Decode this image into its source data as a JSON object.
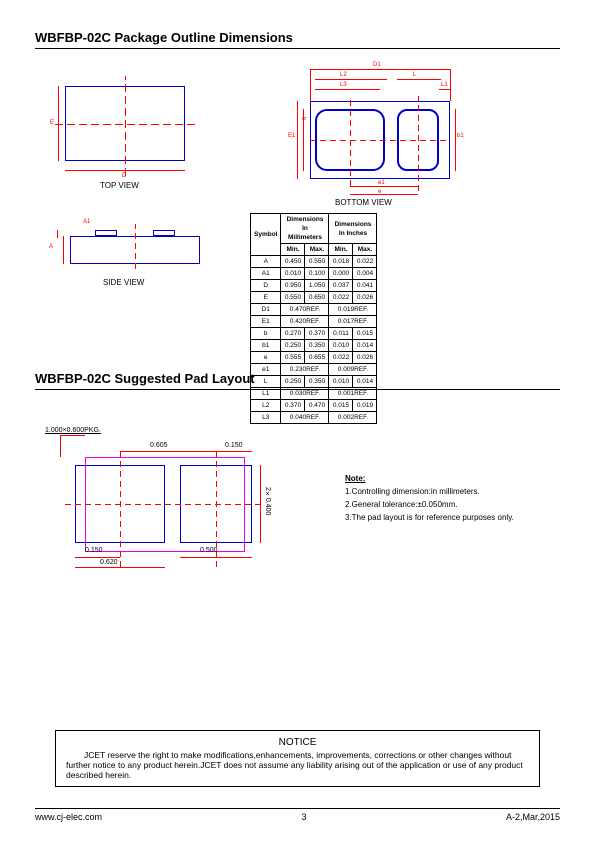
{
  "header1_part": "WBFBP-02C",
  "header1_title": "Package Outline Dimensions",
  "view_labels": {
    "top": "TOP VIEW",
    "bottom": "BOTTOM VIEW",
    "side": "SIDE VIEW"
  },
  "top_view_dims": {
    "D": "D",
    "E": "E"
  },
  "bottom_view_dims": {
    "D1": "D1",
    "L2": "L2",
    "L3": "L3",
    "L": "L",
    "L1": "L1",
    "E1": "E1",
    "b": "b",
    "b1": "b1",
    "e1": "e1",
    "e": "e"
  },
  "side_view_dims": {
    "A": "A",
    "A1": "A1"
  },
  "table": {
    "h_symbol": "Symbol",
    "h_dim_mm": "Dimensions In Millimeters",
    "h_dim_in": "Dimensions In Inches",
    "h_min": "Min.",
    "h_max": "Max.",
    "rows": [
      {
        "sym": "A",
        "mm_min": "0.450",
        "mm_max": "0.550",
        "in_min": "0.018",
        "in_max": "0.022"
      },
      {
        "sym": "A1",
        "mm_min": "0.010",
        "mm_max": "0.100",
        "in_min": "0.000",
        "in_max": "0.004"
      },
      {
        "sym": "D",
        "mm_min": "0.950",
        "mm_max": "1.050",
        "in_min": "0.037",
        "in_max": "0.041"
      },
      {
        "sym": "E",
        "mm_min": "0.550",
        "mm_max": "0.650",
        "in_min": "0.022",
        "in_max": "0.026"
      },
      {
        "sym": "D1",
        "mm_span": "0.470REF.",
        "in_span": "0.019REF."
      },
      {
        "sym": "E1",
        "mm_span": "0.420REF.",
        "in_span": "0.017REF."
      },
      {
        "sym": "b",
        "mm_min": "0.270",
        "mm_max": "0.370",
        "in_min": "0.011",
        "in_max": "0.015"
      },
      {
        "sym": "b1",
        "mm_min": "0.250",
        "mm_max": "0.350",
        "in_min": "0.010",
        "in_max": "0.014"
      },
      {
        "sym": "e",
        "mm_min": "0.555",
        "mm_max": "0.655",
        "in_min": "0.022",
        "in_max": "0.026"
      },
      {
        "sym": "e1",
        "mm_span": "0.230REF.",
        "in_span": "0.009REF."
      },
      {
        "sym": "L",
        "mm_min": "0.250",
        "mm_max": "0.350",
        "in_min": "0.010",
        "in_max": "0.014"
      },
      {
        "sym": "L1",
        "mm_span": "0.030REF.",
        "in_span": "0.001REF."
      },
      {
        "sym": "L2",
        "mm_min": "0.370",
        "mm_max": "0.470",
        "in_min": "0.015",
        "in_max": "0.019"
      },
      {
        "sym": "L3",
        "mm_span": "0.040REF.",
        "in_span": "0.002REF."
      }
    ]
  },
  "header2_part": "WBFBP-02C",
  "header2_title": "Suggested Pad Layout",
  "pad_layout": {
    "pkg_label": "1.000×0.600PKG.",
    "d_0605": "0.605",
    "d_0150": "0.150",
    "d_0150b": "0.150",
    "d_0500": "0.500",
    "d_0620": "0.620",
    "d_2x0400": "2×0.400"
  },
  "notes": {
    "title": "Note:",
    "l1": "1.Controlling dimension:in millimeters.",
    "l2": "2.General tolerance:±0.050mm.",
    "l3": "3.The pad layout is for reference purposes only."
  },
  "notice": {
    "title": "NOTICE",
    "body": "JCET  reserve the right to make modifications,enhancements, improvements, corrections or other changes without further notice to any product herein.JCET does not assume any liability arising out of the application or use of any product described herein."
  },
  "footer": {
    "url": "www.cj-elec.com",
    "page": "3",
    "rev": "A-2,Mar,2015"
  },
  "colors": {
    "dim_line": "#ff0000",
    "outline": "#0000cc",
    "pkg_outline": "#ee00ee"
  }
}
